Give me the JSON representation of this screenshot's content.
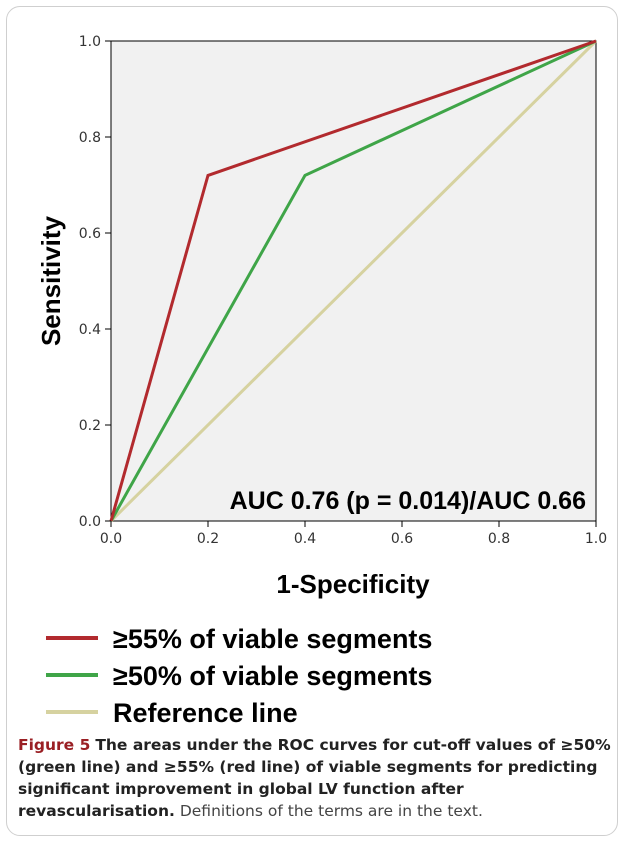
{
  "figure": {
    "caption_label": "Figure 5",
    "caption_bold": "The areas under the ROC curves for cut-off values of ≥50% (green line) and ≥55% (red line) of viable segments for predicting significant improvement in global LV function after revascularisation.",
    "caption_rest": "Definitions of the terms are in the text."
  },
  "colors": {
    "red_series": "#b22a2e",
    "green_series": "#3fa548",
    "reference": "#d6d2a0",
    "plot_bg": "#f1f1f1"
  },
  "chart_data": {
    "type": "line",
    "xlabel": "1-Specificity",
    "ylabel": "Sensitivity",
    "xlim": [
      0,
      1
    ],
    "ylim": [
      0,
      1
    ],
    "xticks": [
      "0.0",
      "0.2",
      "0.4",
      "0.6",
      "0.8",
      "1.0"
    ],
    "yticks": [
      "0.0",
      "0.2",
      "0.4",
      "0.6",
      "0.8",
      "1.0"
    ],
    "grid": false,
    "annotation": "AUC 0.76 (p = 0.014)/AUC 0.66",
    "legend_position": "below",
    "series": [
      {
        "name": "≥55% of viable segments",
        "color": "#b22a2e",
        "points": [
          [
            0,
            0
          ],
          [
            0.2,
            0.72
          ],
          [
            1,
            1
          ]
        ]
      },
      {
        "name": "≥50% of viable segments",
        "color": "#3fa548",
        "points": [
          [
            0,
            0
          ],
          [
            0.4,
            0.72
          ],
          [
            1,
            1
          ]
        ]
      },
      {
        "name": "Reference line",
        "color": "#d6d2a0",
        "points": [
          [
            0,
            0
          ],
          [
            1,
            1
          ]
        ]
      }
    ]
  }
}
